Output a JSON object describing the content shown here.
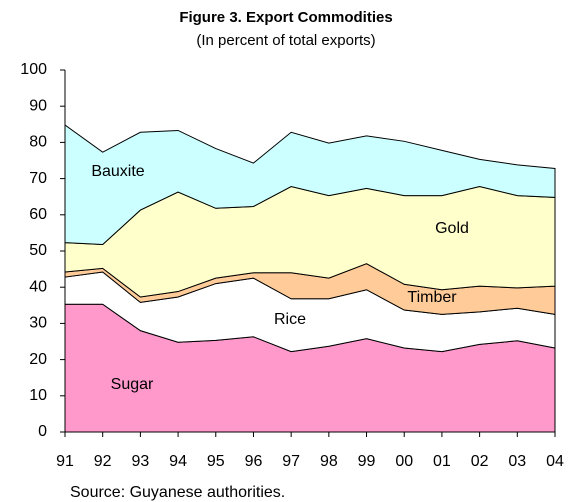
{
  "chart_data": {
    "type": "stacked-area",
    "title": "Figure 3. Export Commodities",
    "subtitle": "(In percent of total exports)",
    "source": "Source: Guyanese authorities.",
    "categories": [
      "91",
      "92",
      "93",
      "94",
      "95",
      "96",
      "97",
      "98",
      "99",
      "00",
      "01",
      "02",
      "03",
      "04"
    ],
    "series": [
      {
        "name": "Sugar",
        "color": "#ff99cc",
        "values": [
          35.3,
          35.3,
          28,
          24.8,
          25.3,
          26.3,
          22.2,
          23.7,
          25.8,
          23.2,
          22.2,
          24.2,
          25.2,
          23.2
        ]
      },
      {
        "name": "Rice",
        "color": "#ffffff",
        "values": [
          7.5,
          8.9,
          7.8,
          12.5,
          15.7,
          16.2,
          14.6,
          13.1,
          13.5,
          10.5,
          10.3,
          9,
          9,
          9.3
        ]
      },
      {
        "name": "Timber",
        "color": "#ffcc99",
        "values": [
          1.4,
          1,
          1.5,
          1.5,
          1.5,
          1.5,
          7.2,
          5.7,
          7.2,
          7.1,
          6.8,
          7.1,
          5.6,
          7.8
        ]
      },
      {
        "name": "Gold",
        "color": "#ffffcc",
        "values": [
          8.1,
          6.6,
          24,
          27.5,
          19.3,
          18.3,
          23.8,
          22.8,
          20.8,
          24.5,
          26,
          27.5,
          25.5,
          24.5
        ]
      },
      {
        "name": "Bauxite",
        "color": "#ccffff",
        "values": [
          32.5,
          25.5,
          21.5,
          17,
          16.5,
          12,
          15,
          14.5,
          14.5,
          15,
          12.5,
          7.5,
          8.5,
          8
        ]
      }
    ],
    "ylim": [
      0,
      100
    ],
    "yticks": [
      0,
      10,
      20,
      30,
      40,
      50,
      60,
      70,
      80,
      90,
      100
    ],
    "grid": false
  }
}
